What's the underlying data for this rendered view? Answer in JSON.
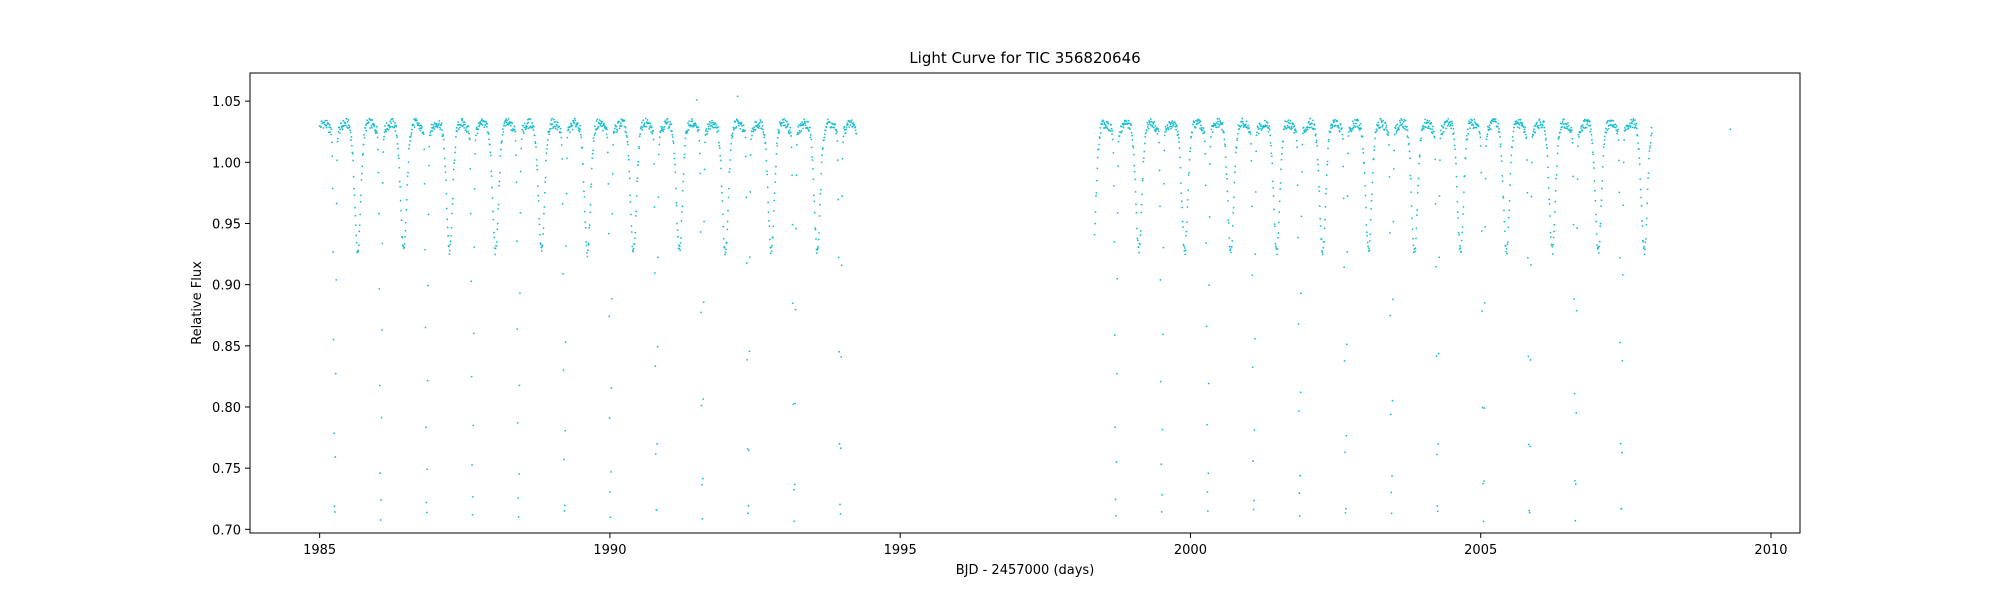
{
  "chart_data": {
    "type": "scatter",
    "title": "Light Curve for TIC 356820646",
    "xlabel": "BJD - 2457000 (days)",
    "ylabel": "Relative Flux",
    "xlim": [
      1983.8,
      2010.5
    ],
    "ylim": [
      0.697,
      1.073
    ],
    "x_ticks": [
      1985,
      1990,
      1995,
      2000,
      2005,
      2010
    ],
    "y_ticks": [
      0.7,
      0.75,
      0.8,
      0.85,
      0.9,
      0.95,
      1.0,
      1.05
    ],
    "grid": false,
    "legend": "none",
    "marker_color": "#17becf",
    "series": [
      {
        "segments": [
          {
            "start": 1985.0,
            "end": 1994.25
          },
          {
            "start": 1998.35,
            "end": 2007.95
          }
        ],
        "period": 0.7915,
        "primary_eclipse_times": [
          1985.26,
          1986.05,
          1986.84,
          1987.63,
          1988.42,
          1989.22,
          1990.01,
          1990.8,
          1991.59,
          1992.38,
          1993.17,
          1993.96,
          1998.71,
          1999.5,
          2000.29,
          2001.08,
          2001.87,
          2002.67,
          2003.46,
          2004.25,
          2005.04,
          2005.83,
          2006.62,
          2007.42
        ],
        "primary_depth_min": 0.718,
        "secondary_depth_min": 0.935,
        "max_flux": 1.035,
        "outliers": [
          {
            "x": 1991.5,
            "y": 1.051
          },
          {
            "x": 1992.2,
            "y": 1.054
          },
          {
            "x": 2009.3,
            "y": 1.027
          }
        ]
      }
    ]
  }
}
